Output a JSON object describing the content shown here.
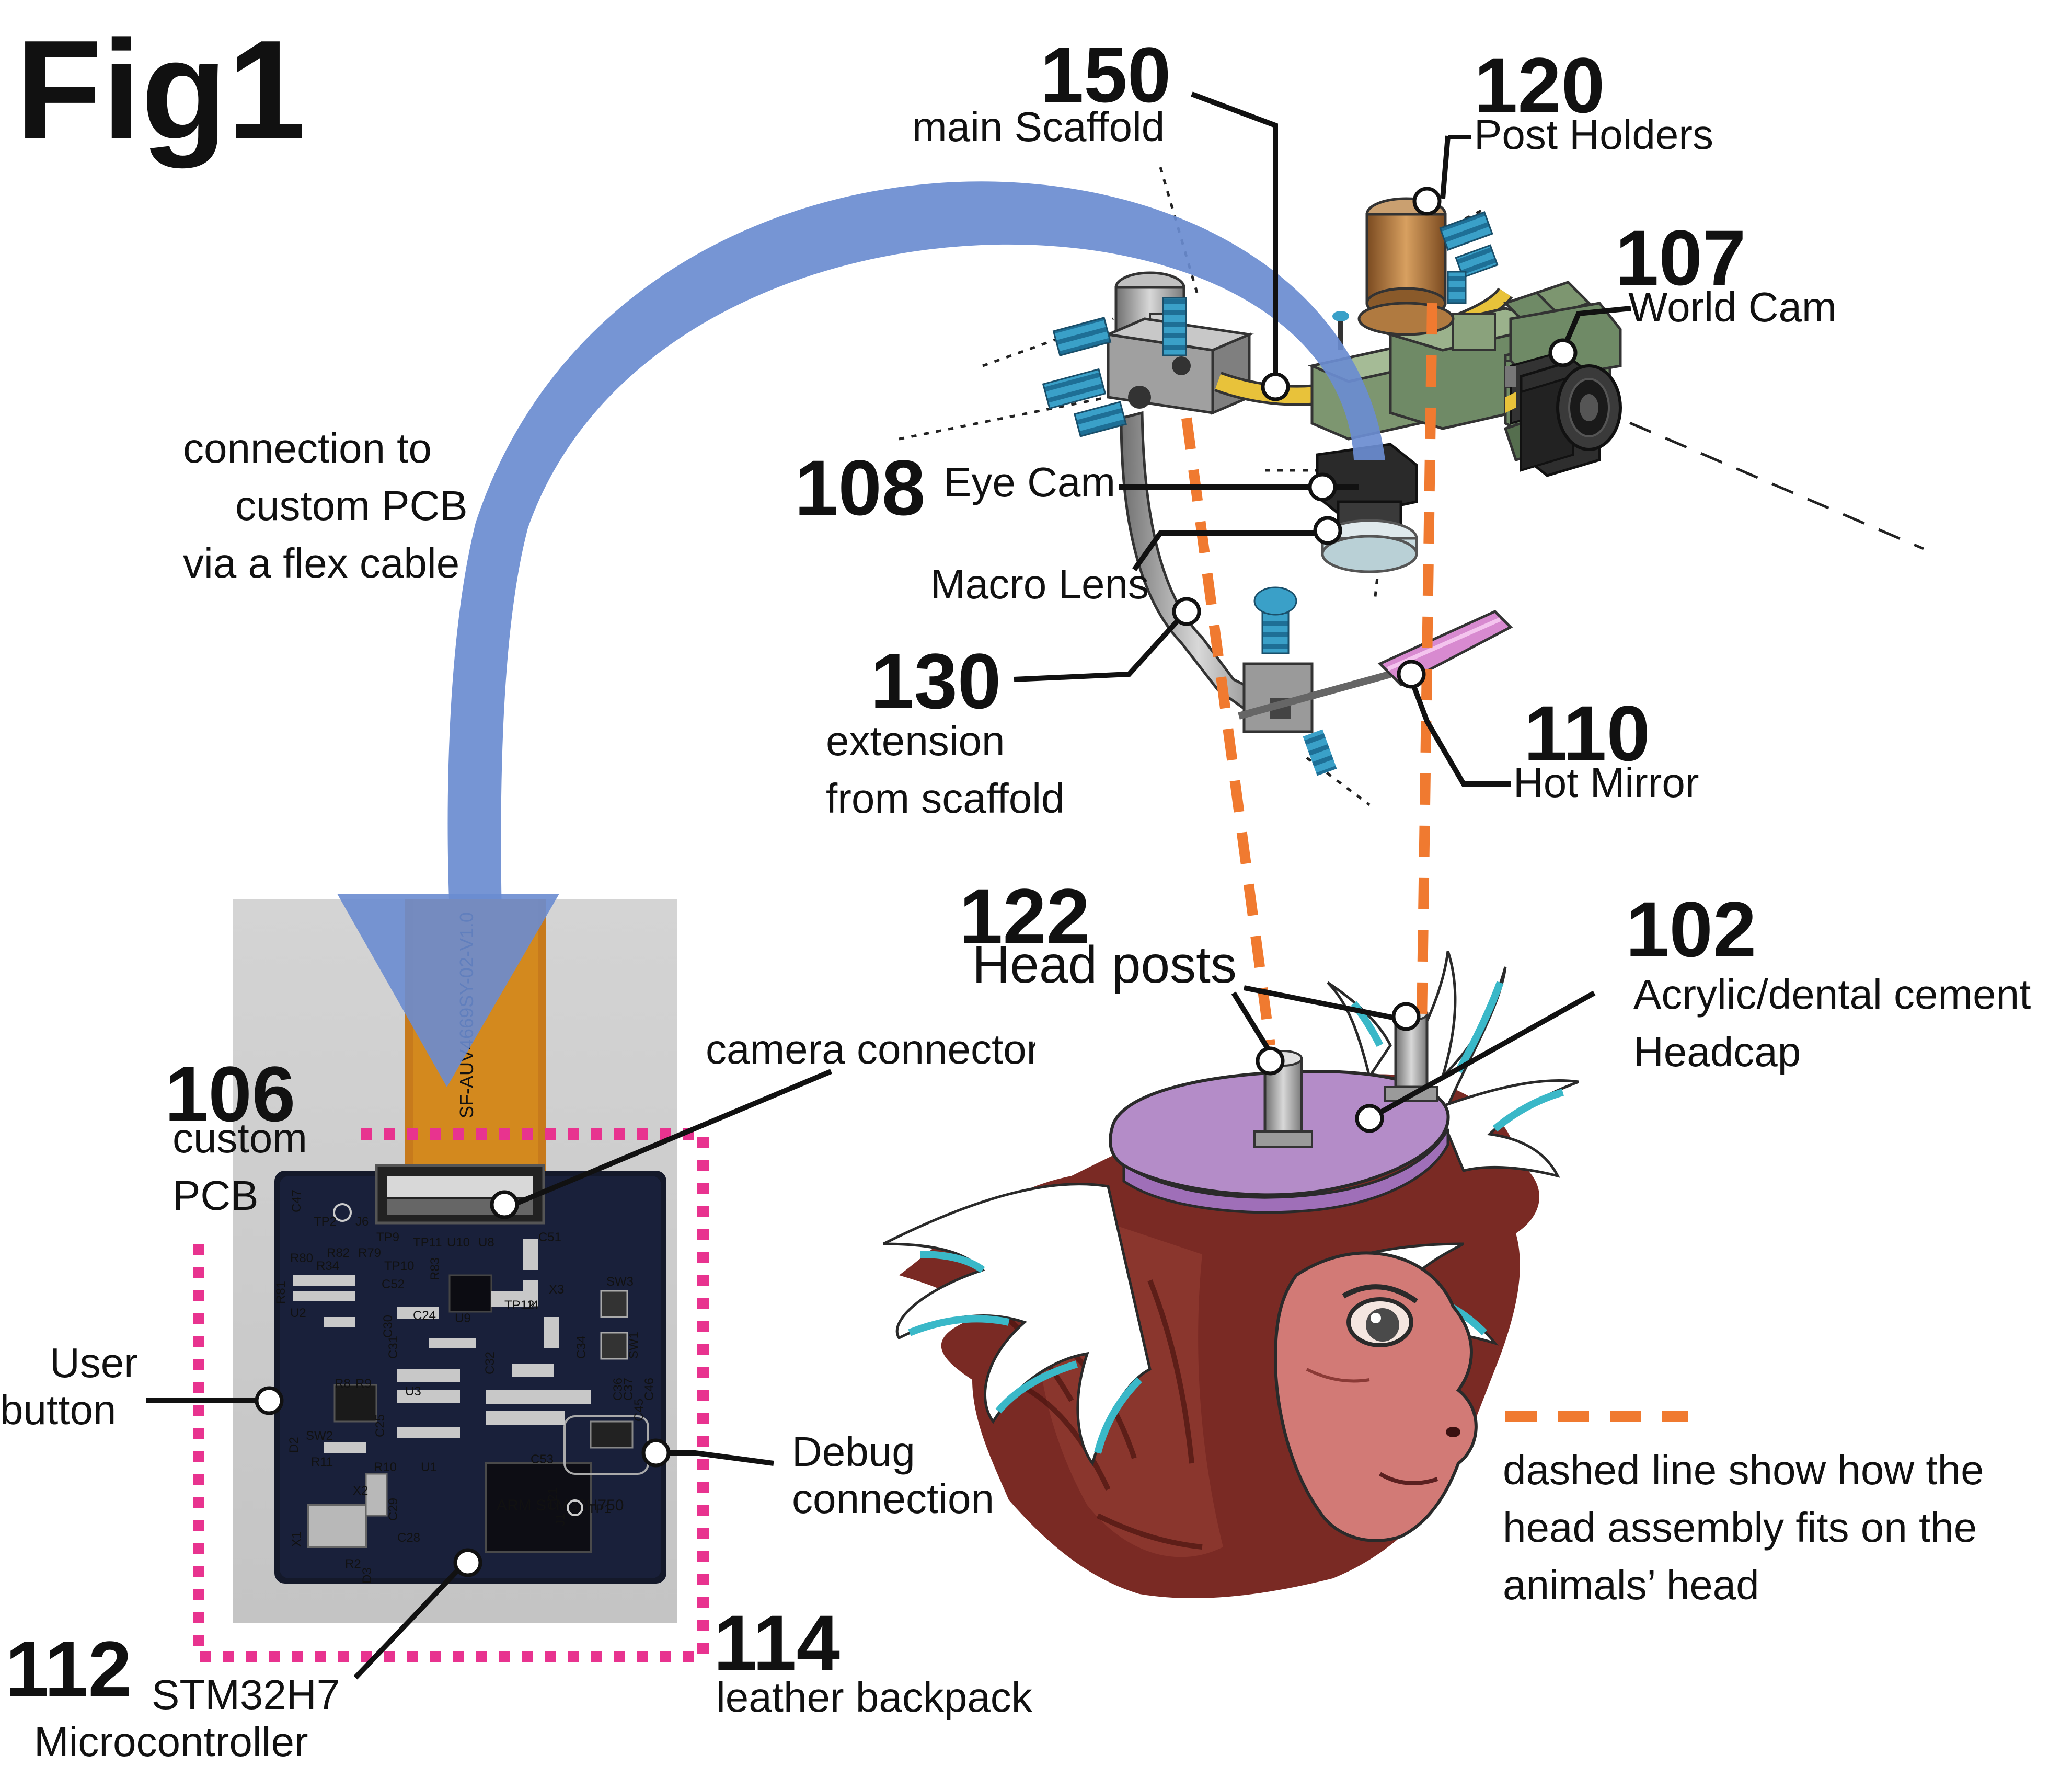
{
  "figure": {
    "title": "Fig1",
    "colors": {
      "flex_cable": "#6a8cd0",
      "dashed_fit": "#f07a30",
      "backpack_outline": "#e8338f",
      "pcb": "#14192a",
      "headcap": "#b48cc8",
      "scaffold": "#9a9a9a",
      "post_holder": "#c8894a",
      "cable_yellow": "#e8c23a",
      "world_cam_body": "#6f8a66",
      "screw": "#3aa0c8",
      "hot_mirror": "#d88ad0",
      "fur": "#7a2a24",
      "face": "#d27a76"
    },
    "labels": {
      "main_scaffold": {
        "number": "150",
        "text": "main Scaffold"
      },
      "post_holders": {
        "number": "120",
        "text": "Post Holders"
      },
      "world_cam": {
        "number": "107",
        "text": "World Cam"
      },
      "eye_cam": {
        "number": "108",
        "text": "Eye Cam"
      },
      "macro_lens": {
        "text": "Macro Lens"
      },
      "extension": {
        "number": "130",
        "line1": "extension",
        "line2": "from scaffold"
      },
      "hot_mirror": {
        "number": "110",
        "text": "Hot Mirror"
      },
      "head_posts": {
        "number": "122",
        "text": "Head posts"
      },
      "headcap": {
        "number": "102",
        "line1": "Acrylic/dental cement",
        "line2": "Headcap"
      },
      "flex_cable": {
        "line1": "connection to",
        "line2": "custom PCB",
        "line3": "via a flex cable"
      },
      "custom_pcb": {
        "number": "106",
        "line1": "custom",
        "line2": "PCB"
      },
      "camera_connector": {
        "text": "camera connector"
      },
      "user_button": {
        "line1": "User",
        "line2": "button"
      },
      "debug": {
        "line1": "Debug",
        "line2": "connection"
      },
      "microcontroller": {
        "number": "112",
        "line1": "STM32H7",
        "line2": "Microcontroller"
      },
      "backpack": {
        "number": "114",
        "text": "leather backpack"
      },
      "dashed_note": {
        "line1": "dashed line show how the",
        "line2": "head assembly fits on the",
        "line3": "animals’ head"
      }
    },
    "pcb_silkscreen": [
      "C47",
      "TP2",
      "J6",
      "TP9",
      "TP11",
      "U10",
      "U8",
      "C51",
      "R80",
      "R82",
      "R79",
      "R34",
      "TP10",
      "R81",
      "C52",
      "R83",
      "X3",
      "SW3",
      "U2",
      "C24",
      "U9",
      "TP12",
      "U4",
      "C30",
      "C34",
      "C31",
      "U3",
      "R8",
      "R9",
      "C32",
      "C25",
      "SW1",
      "C46",
      "C36",
      "C37",
      "C45",
      "SW2",
      "R11",
      "R10",
      "U1",
      "C53",
      "D2",
      "X2",
      "C29",
      "C28",
      "C21",
      "TP1",
      "J1",
      "X1",
      "R2",
      "D3",
      "SF-AUV4669SY-02-V1.0",
      "ARM STM32H750"
    ]
  }
}
